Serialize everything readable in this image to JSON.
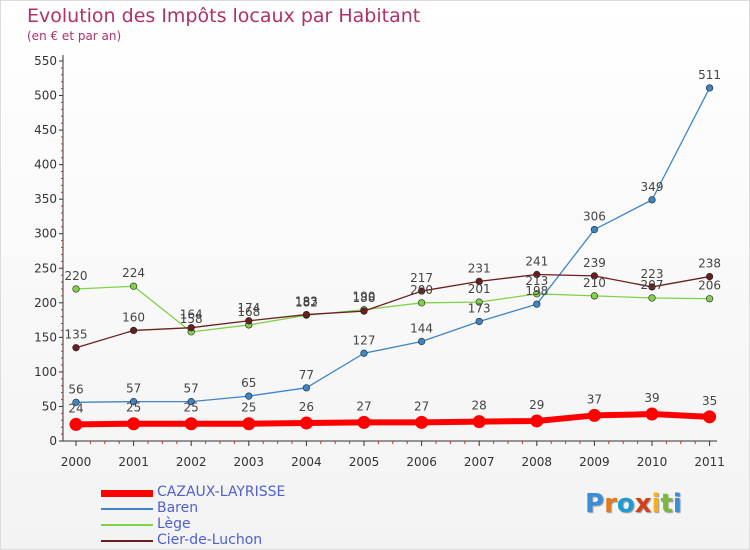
{
  "header": {
    "title": "Evolution des Impôts locaux par Habitant",
    "subtitle": "(en € et par an)"
  },
  "logo": {
    "text": "Proxiti",
    "colors": [
      "#3a8dd8",
      "#e07b1f",
      "#1e9bd2",
      "#d0401b",
      "#f2b01e",
      "#7cb83c",
      "#3a8dd8"
    ]
  },
  "chart_data": {
    "type": "line",
    "title": "Evolution des Impôts locaux par Habitant",
    "subtitle": "(en € et par an)",
    "xlabel": "",
    "ylabel": "",
    "ylim": [
      0,
      550
    ],
    "yticks": [
      0,
      50,
      100,
      150,
      200,
      250,
      300,
      350,
      400,
      450,
      500,
      550
    ],
    "grid": false,
    "legend_position": "bottom-left",
    "x": [
      "2000",
      "2001",
      "2002",
      "2003",
      "2004",
      "2005",
      "2006",
      "2007",
      "2008",
      "2009",
      "2010",
      "2011"
    ],
    "series": [
      {
        "name": "CAZAUX-LAYRISSE",
        "color": "#ff0000",
        "values": [
          24,
          25,
          25,
          25,
          26,
          27,
          27,
          28,
          29,
          37,
          39,
          35
        ]
      },
      {
        "name": "Baren",
        "color": "#3d85c6",
        "values": [
          56,
          57,
          57,
          65,
          77,
          127,
          144,
          173,
          198,
          306,
          349,
          511
        ]
      },
      {
        "name": "Lège",
        "color": "#7ed348",
        "values": [
          220,
          224,
          158,
          168,
          182,
          190,
          200,
          201,
          213,
          210,
          207,
          206
        ]
      },
      {
        "name": "Cier-de-Luchon",
        "color": "#6b1e1e",
        "values": [
          135,
          160,
          164,
          174,
          183,
          188,
          217,
          231,
          241,
          239,
          223,
          238
        ]
      }
    ]
  }
}
